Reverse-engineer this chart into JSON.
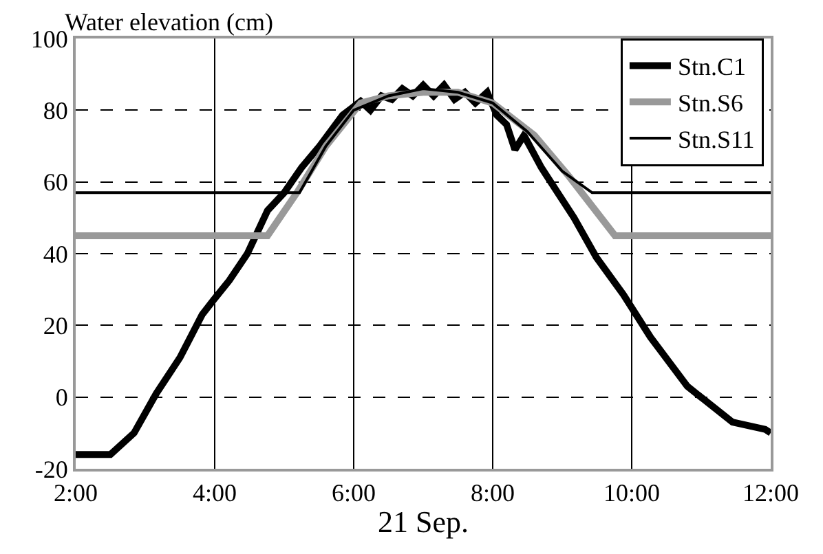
{
  "chart_data": {
    "type": "line",
    "ylabel": "Water elevation (cm)",
    "xlabel": "21 Sep.",
    "xlim": [
      2,
      12
    ],
    "xticks": [
      {
        "value": 2,
        "label": "2:00"
      },
      {
        "value": 4,
        "label": "4:00"
      },
      {
        "value": 6,
        "label": "6:00"
      },
      {
        "value": 8,
        "label": "8:00"
      },
      {
        "value": 10,
        "label": "10:00"
      },
      {
        "value": 12,
        "label": "12:00"
      }
    ],
    "ylim": [
      -20,
      100
    ],
    "yticks": [
      -20,
      0,
      20,
      40,
      60,
      80,
      100
    ],
    "grid": true,
    "legend": "top right",
    "marker": "none",
    "series": [
      {
        "name": "Stn.C1",
        "color": "#000000",
        "x": [
          2,
          2.5,
          2.84,
          3.16,
          3.5,
          3.82,
          3.98,
          4.21,
          4.47,
          4.76,
          5,
          5.25,
          5.51,
          5.84,
          6.1,
          6.24,
          6.4,
          6.55,
          6.7,
          6.85,
          7,
          7.15,
          7.3,
          7.45,
          7.6,
          7.75,
          7.92,
          8.06,
          8.2,
          8.32,
          8.45,
          8.7,
          9.17,
          9.49,
          9.88,
          10.27,
          10.8,
          11.45,
          11.92,
          12
        ],
        "values": [
          -16,
          -16,
          -10,
          1,
          11,
          23,
          27,
          32.5,
          40,
          52,
          57,
          64,
          70,
          78.6,
          82.5,
          80,
          84,
          83,
          86,
          84,
          87,
          84,
          87,
          83,
          85,
          82,
          85,
          78.6,
          76,
          69,
          73,
          64,
          50,
          39,
          28.6,
          16.7,
          3,
          -7,
          -9,
          -10
        ]
      },
      {
        "name": "Stn.S6",
        "color": "#999999",
        "x": [
          2,
          4.76,
          5.2,
          5.6,
          6.1,
          6.5,
          7,
          7.5,
          8,
          8.6,
          9.1,
          9.76,
          12
        ],
        "values": [
          45,
          45,
          57.5,
          70,
          82,
          84,
          85,
          85,
          82,
          73,
          61.5,
          45,
          45
        ]
      },
      {
        "name": "Stn.S11",
        "color": "#000000",
        "x": [
          2,
          5.22,
          5.6,
          6,
          6.5,
          7,
          7.5,
          8,
          8.5,
          9,
          9.43,
          12
        ],
        "values": [
          57,
          57,
          70,
          80,
          84,
          86,
          85,
          82,
          74,
          63,
          57,
          57
        ]
      }
    ]
  }
}
